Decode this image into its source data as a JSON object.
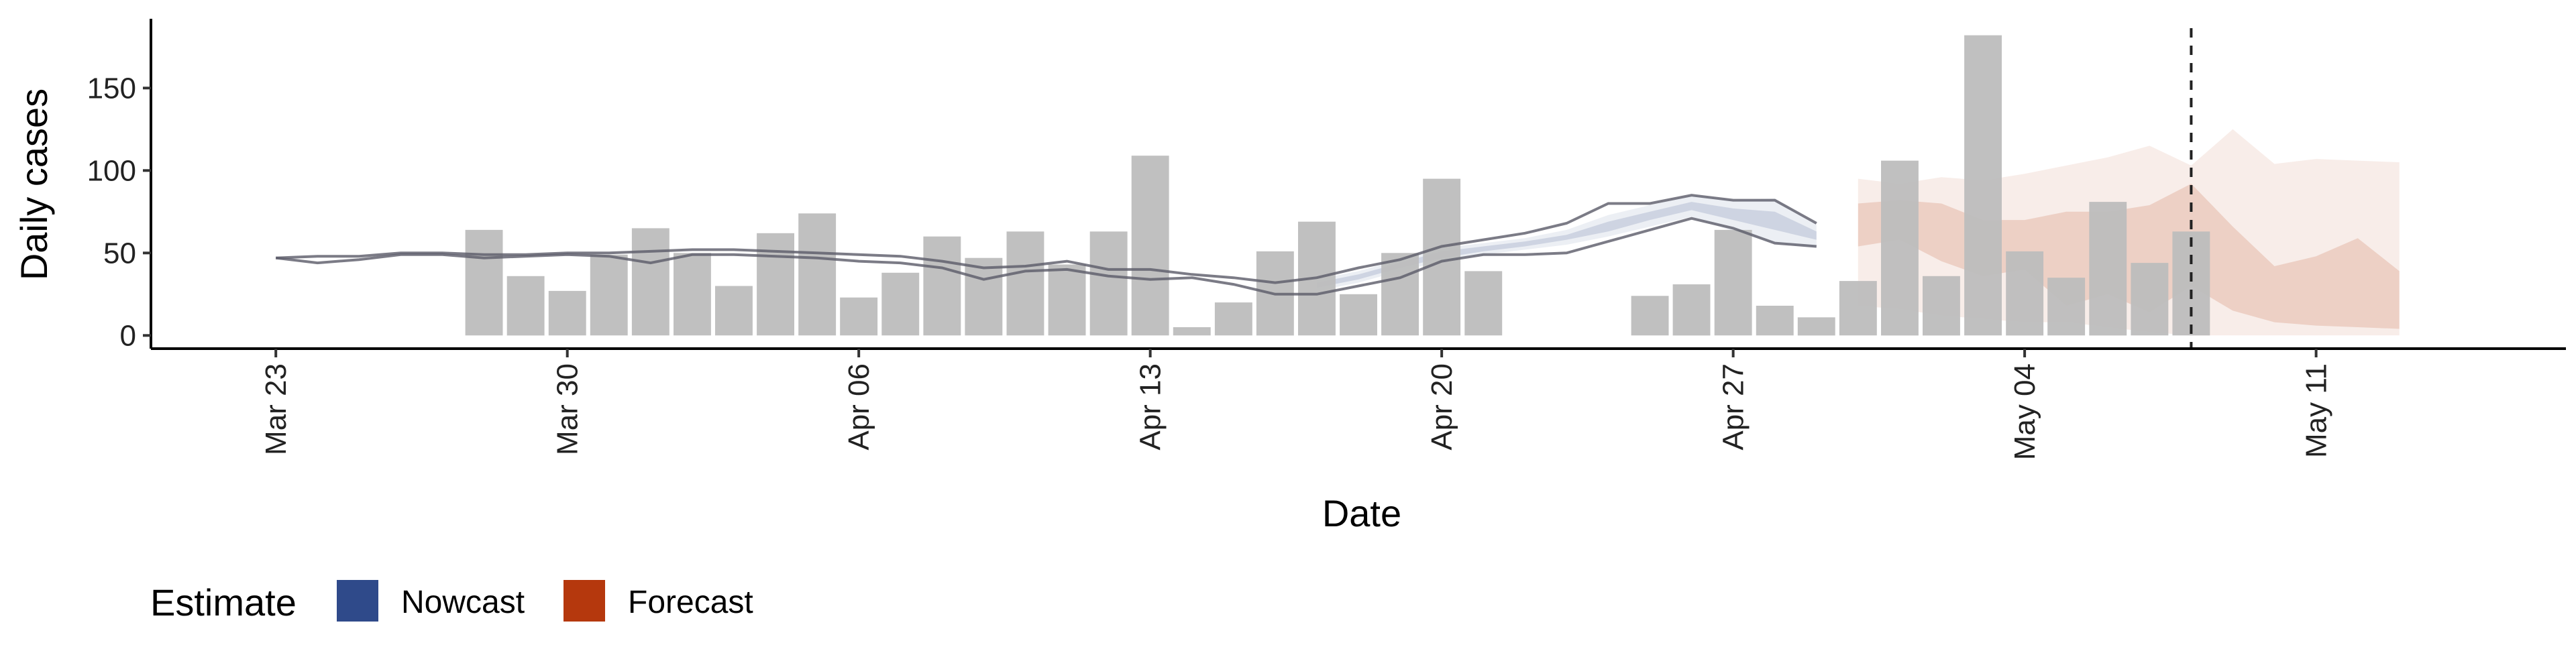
{
  "chart_data": {
    "type": "bar",
    "title": "",
    "xlabel": "Date",
    "ylabel": "Daily cases",
    "x_ticks": [
      "Mar 23",
      "Mar 30",
      "Apr 06",
      "Apr 13",
      "Apr 20",
      "Apr 27",
      "May 04",
      "May 11"
    ],
    "y_ticks": [
      "0",
      "50",
      "100",
      "150"
    ],
    "ylim": [
      -8,
      192
    ],
    "xlim": [
      "2020-03-20",
      "2020-05-17"
    ],
    "grid": false,
    "legend_position": "bottom-left",
    "legend": {
      "title": "Estimate",
      "items": [
        {
          "label": "Nowcast",
          "color": "#2f4a8a"
        },
        {
          "label": "Forecast",
          "color": "#b5380d"
        }
      ]
    },
    "colors": {
      "bars": "#bdbdbd",
      "lines": "#5a5a68",
      "nowcast": "#2f4a8a",
      "forecast": "#b5380d",
      "vline": "#222222"
    },
    "vertical_line_date": "2020-05-08",
    "bars": [
      {
        "date": "2020-03-28",
        "value": 64
      },
      {
        "date": "2020-03-29",
        "value": 36
      },
      {
        "date": "2020-03-30",
        "value": 27
      },
      {
        "date": "2020-03-31",
        "value": 49
      },
      {
        "date": "2020-04-01",
        "value": 65
      },
      {
        "date": "2020-04-02",
        "value": 50
      },
      {
        "date": "2020-04-03",
        "value": 30
      },
      {
        "date": "2020-04-04",
        "value": 62
      },
      {
        "date": "2020-04-05",
        "value": 74
      },
      {
        "date": "2020-04-06",
        "value": 23
      },
      {
        "date": "2020-04-07",
        "value": 38
      },
      {
        "date": "2020-04-08",
        "value": 60
      },
      {
        "date": "2020-04-09",
        "value": 47
      },
      {
        "date": "2020-04-10",
        "value": 63
      },
      {
        "date": "2020-04-11",
        "value": 43
      },
      {
        "date": "2020-04-12",
        "value": 63
      },
      {
        "date": "2020-04-13",
        "value": 109
      },
      {
        "date": "2020-04-14",
        "value": 5
      },
      {
        "date": "2020-04-15",
        "value": 20
      },
      {
        "date": "2020-04-16",
        "value": 51
      },
      {
        "date": "2020-04-17",
        "value": 69
      },
      {
        "date": "2020-04-18",
        "value": 25
      },
      {
        "date": "2020-04-19",
        "value": 50
      },
      {
        "date": "2020-04-20",
        "value": 95
      },
      {
        "date": "2020-04-21",
        "value": 39
      },
      {
        "date": "2020-04-25",
        "value": 24
      },
      {
        "date": "2020-04-26",
        "value": 31
      },
      {
        "date": "2020-04-27",
        "value": 64
      },
      {
        "date": "2020-04-28",
        "value": 18
      },
      {
        "date": "2020-04-29",
        "value": 11
      },
      {
        "date": "2020-04-30",
        "value": 33
      },
      {
        "date": "2020-05-01",
        "value": 106
      },
      {
        "date": "2020-05-02",
        "value": 36
      },
      {
        "date": "2020-05-03",
        "value": 182
      },
      {
        "date": "2020-05-04",
        "value": 51
      },
      {
        "date": "2020-05-05",
        "value": 35
      },
      {
        "date": "2020-05-06",
        "value": 81
      },
      {
        "date": "2020-05-07",
        "value": 44
      },
      {
        "date": "2020-05-08",
        "value": 63
      }
    ],
    "estimate_lines": [
      {
        "points": [
          {
            "date": "2020-03-23",
            "value": 47
          },
          {
            "date": "2020-03-24",
            "value": 48
          },
          {
            "date": "2020-03-25",
            "value": 48
          },
          {
            "date": "2020-03-26",
            "value": 50
          },
          {
            "date": "2020-03-27",
            "value": 50
          },
          {
            "date": "2020-03-28",
            "value": 49
          },
          {
            "date": "2020-03-29",
            "value": 49
          },
          {
            "date": "2020-03-30",
            "value": 50
          },
          {
            "date": "2020-03-31",
            "value": 50
          },
          {
            "date": "2020-04-01",
            "value": 51
          },
          {
            "date": "2020-04-02",
            "value": 52
          },
          {
            "date": "2020-04-03",
            "value": 52
          },
          {
            "date": "2020-04-04",
            "value": 51
          },
          {
            "date": "2020-04-05",
            "value": 50
          },
          {
            "date": "2020-04-06",
            "value": 49
          },
          {
            "date": "2020-04-07",
            "value": 48
          },
          {
            "date": "2020-04-08",
            "value": 45
          },
          {
            "date": "2020-04-09",
            "value": 41
          },
          {
            "date": "2020-04-10",
            "value": 42
          },
          {
            "date": "2020-04-11",
            "value": 45
          },
          {
            "date": "2020-04-12",
            "value": 40
          },
          {
            "date": "2020-04-13",
            "value": 40
          },
          {
            "date": "2020-04-14",
            "value": 37
          },
          {
            "date": "2020-04-15",
            "value": 35
          },
          {
            "date": "2020-04-16",
            "value": 32
          },
          {
            "date": "2020-04-17",
            "value": 35
          },
          {
            "date": "2020-04-18",
            "value": 41
          },
          {
            "date": "2020-04-19",
            "value": 46
          },
          {
            "date": "2020-04-20",
            "value": 54
          },
          {
            "date": "2020-04-21",
            "value": 58
          },
          {
            "date": "2020-04-22",
            "value": 62
          },
          {
            "date": "2020-04-23",
            "value": 68
          },
          {
            "date": "2020-04-24",
            "value": 80
          },
          {
            "date": "2020-04-25",
            "value": 80
          },
          {
            "date": "2020-04-26",
            "value": 85
          },
          {
            "date": "2020-04-27",
            "value": 82
          },
          {
            "date": "2020-04-28",
            "value": 82
          },
          {
            "date": "2020-04-29",
            "value": 68
          }
        ]
      },
      {
        "points": [
          {
            "date": "2020-03-23",
            "value": 47
          },
          {
            "date": "2020-03-24",
            "value": 44
          },
          {
            "date": "2020-03-25",
            "value": 46
          },
          {
            "date": "2020-03-26",
            "value": 49
          },
          {
            "date": "2020-03-27",
            "value": 49
          },
          {
            "date": "2020-03-28",
            "value": 47
          },
          {
            "date": "2020-03-29",
            "value": 48
          },
          {
            "date": "2020-03-30",
            "value": 49
          },
          {
            "date": "2020-03-31",
            "value": 48
          },
          {
            "date": "2020-04-01",
            "value": 44
          },
          {
            "date": "2020-04-02",
            "value": 49
          },
          {
            "date": "2020-04-03",
            "value": 49
          },
          {
            "date": "2020-04-04",
            "value": 48
          },
          {
            "date": "2020-04-05",
            "value": 47
          },
          {
            "date": "2020-04-06",
            "value": 45
          },
          {
            "date": "2020-04-07",
            "value": 44
          },
          {
            "date": "2020-04-08",
            "value": 41
          },
          {
            "date": "2020-04-09",
            "value": 34
          },
          {
            "date": "2020-04-10",
            "value": 39
          },
          {
            "date": "2020-04-11",
            "value": 40
          },
          {
            "date": "2020-04-12",
            "value": 36
          },
          {
            "date": "2020-04-13",
            "value": 34
          },
          {
            "date": "2020-04-14",
            "value": 35
          },
          {
            "date": "2020-04-15",
            "value": 31
          },
          {
            "date": "2020-04-16",
            "value": 25
          },
          {
            "date": "2020-04-17",
            "value": 25
          },
          {
            "date": "2020-04-18",
            "value": 30
          },
          {
            "date": "2020-04-19",
            "value": 35
          },
          {
            "date": "2020-04-20",
            "value": 45
          },
          {
            "date": "2020-04-21",
            "value": 49
          },
          {
            "date": "2020-04-22",
            "value": 49
          },
          {
            "date": "2020-04-23",
            "value": 50
          },
          {
            "date": "2020-04-24",
            "value": 57
          },
          {
            "date": "2020-04-25",
            "value": 64
          },
          {
            "date": "2020-04-26",
            "value": 71
          },
          {
            "date": "2020-04-27",
            "value": 65
          },
          {
            "date": "2020-04-28",
            "value": 56
          },
          {
            "date": "2020-04-29",
            "value": 54
          }
        ]
      }
    ],
    "nowcast_band": {
      "outer": [
        {
          "date": "2020-04-17",
          "lower": 27,
          "upper": 34
        },
        {
          "date": "2020-04-18",
          "lower": 32,
          "upper": 39
        },
        {
          "date": "2020-04-19",
          "lower": 39,
          "upper": 46
        },
        {
          "date": "2020-04-20",
          "lower": 45,
          "upper": 53
        },
        {
          "date": "2020-04-21",
          "lower": 49,
          "upper": 56
        },
        {
          "date": "2020-04-22",
          "lower": 52,
          "upper": 59
        },
        {
          "date": "2020-04-23",
          "lower": 55,
          "upper": 64
        },
        {
          "date": "2020-04-24",
          "lower": 60,
          "upper": 73
        },
        {
          "date": "2020-04-25",
          "lower": 66,
          "upper": 79
        },
        {
          "date": "2020-04-26",
          "lower": 72,
          "upper": 85
        },
        {
          "date": "2020-04-27",
          "lower": 63,
          "upper": 82
        },
        {
          "date": "2020-04-28",
          "lower": 56,
          "upper": 83
        },
        {
          "date": "2020-04-29",
          "lower": 53,
          "upper": 67
        }
      ],
      "inner": [
        {
          "date": "2020-04-17",
          "lower": 29,
          "upper": 32
        },
        {
          "date": "2020-04-18",
          "lower": 34,
          "upper": 37
        },
        {
          "date": "2020-04-19",
          "lower": 41,
          "upper": 44
        },
        {
          "date": "2020-04-20",
          "lower": 47,
          "upper": 51
        },
        {
          "date": "2020-04-21",
          "lower": 51,
          "upper": 54
        },
        {
          "date": "2020-04-22",
          "lower": 54,
          "upper": 57
        },
        {
          "date": "2020-04-23",
          "lower": 58,
          "upper": 61
        },
        {
          "date": "2020-04-24",
          "lower": 63,
          "upper": 69
        },
        {
          "date": "2020-04-25",
          "lower": 70,
          "upper": 75
        },
        {
          "date": "2020-04-26",
          "lower": 76,
          "upper": 81
        },
        {
          "date": "2020-04-27",
          "lower": 70,
          "upper": 77
        },
        {
          "date": "2020-04-28",
          "lower": 64,
          "upper": 75
        },
        {
          "date": "2020-04-29",
          "lower": 58,
          "upper": 63
        }
      ]
    },
    "forecast_band": {
      "outer": [
        {
          "date": "2020-04-30",
          "lower": 18,
          "upper": 95
        },
        {
          "date": "2020-05-01",
          "lower": 16,
          "upper": 92
        },
        {
          "date": "2020-05-02",
          "lower": 12,
          "upper": 96
        },
        {
          "date": "2020-05-03",
          "lower": 10,
          "upper": 94
        },
        {
          "date": "2020-05-04",
          "lower": 8,
          "upper": 98
        },
        {
          "date": "2020-05-05",
          "lower": 8,
          "upper": 103
        },
        {
          "date": "2020-05-06",
          "lower": 5,
          "upper": 108
        },
        {
          "date": "2020-05-07",
          "lower": 2,
          "upper": 115
        },
        {
          "date": "2020-05-08",
          "lower": 0,
          "upper": 103
        },
        {
          "date": "2020-05-09",
          "lower": 0,
          "upper": 125
        },
        {
          "date": "2020-05-10",
          "lower": 0,
          "upper": 104
        },
        {
          "date": "2020-05-11",
          "lower": 0,
          "upper": 107
        },
        {
          "date": "2020-05-12",
          "lower": 0,
          "upper": 106
        },
        {
          "date": "2020-05-13",
          "lower": 0,
          "upper": 105
        }
      ],
      "inner": [
        {
          "date": "2020-04-30",
          "lower": 54,
          "upper": 80
        },
        {
          "date": "2020-05-01",
          "lower": 58,
          "upper": 82
        },
        {
          "date": "2020-05-02",
          "lower": 45,
          "upper": 80
        },
        {
          "date": "2020-05-03",
          "lower": 36,
          "upper": 70
        },
        {
          "date": "2020-05-04",
          "lower": 40,
          "upper": 70
        },
        {
          "date": "2020-05-05",
          "lower": 18,
          "upper": 75
        },
        {
          "date": "2020-05-06",
          "lower": 25,
          "upper": 75
        },
        {
          "date": "2020-05-07",
          "lower": 14,
          "upper": 79
        },
        {
          "date": "2020-05-08",
          "lower": 30,
          "upper": 92
        },
        {
          "date": "2020-05-09",
          "lower": 15,
          "upper": 66
        },
        {
          "date": "2020-05-10",
          "lower": 8,
          "upper": 42
        },
        {
          "date": "2020-05-11",
          "lower": 6,
          "upper": 48
        },
        {
          "date": "2020-05-12",
          "lower": 5,
          "upper": 59
        },
        {
          "date": "2020-05-13",
          "lower": 4,
          "upper": 39
        }
      ]
    }
  }
}
